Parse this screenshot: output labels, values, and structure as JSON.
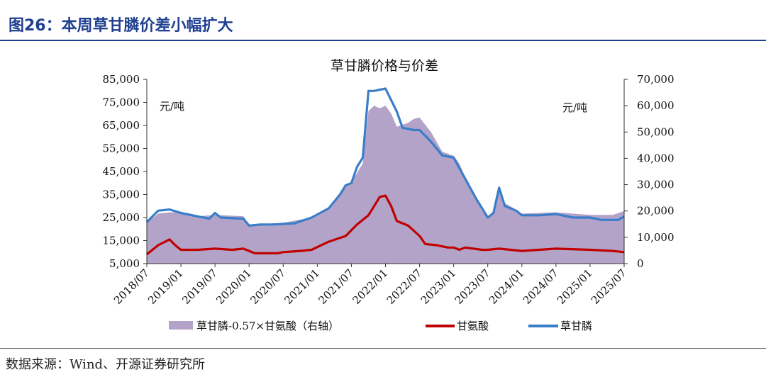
{
  "figure_title": "图26：本周草甘膦价差小幅扩大",
  "source": "数据来源：Wind、开源证券研究所",
  "colors": {
    "area": "#b3a3c8",
    "glycine": "#c00000",
    "glyphosate": "#3a7dc9",
    "title": "#1f3f8f"
  },
  "chart_data": {
    "type": "line",
    "title": "草甘膦价格与价差",
    "left_unit": "元/吨",
    "right_unit": "元/吨",
    "x_ticks": [
      "2018/07",
      "2019/01",
      "2019/07",
      "2020/01",
      "2020/07",
      "2021/01",
      "2021/07",
      "2022/01",
      "2022/07",
      "2023/01",
      "2023/07",
      "2024/01",
      "2024/07",
      "2025/01",
      "2025/07"
    ],
    "y_left": {
      "min": 5000,
      "max": 85000,
      "ticks": [
        "85,000",
        "75,000",
        "65,000",
        "55,000",
        "45,000",
        "35,000",
        "25,000",
        "15,000",
        "5,000"
      ]
    },
    "y_right": {
      "min": 0,
      "max": 70000,
      "ticks": [
        "70,000",
        "60,000",
        "50,000",
        "40,000",
        "30,000",
        "20,000",
        "10,000",
        "0"
      ]
    },
    "legend": [
      "草甘膦-0.57×甘氨酸（右轴）",
      "甘氨酸",
      "草甘膦"
    ],
    "series": [
      {
        "name": "草甘膦",
        "axis": "left",
        "points": [
          [
            "2018/07",
            23000
          ],
          [
            "2018/09",
            28000
          ],
          [
            "2018/11",
            28500
          ],
          [
            "2019/01",
            27000
          ],
          [
            "2019/04",
            25500
          ],
          [
            "2019/06",
            24500
          ],
          [
            "2019/07",
            27000
          ],
          [
            "2019/08",
            25000
          ],
          [
            "2019/12",
            24500
          ],
          [
            "2020/01",
            21500
          ],
          [
            "2020/03",
            22000
          ],
          [
            "2020/05",
            22000
          ],
          [
            "2020/09",
            22500
          ],
          [
            "2020/12",
            25000
          ],
          [
            "2021/03",
            29000
          ],
          [
            "2021/05",
            35000
          ],
          [
            "2021/06",
            39000
          ],
          [
            "2021/07",
            40000
          ],
          [
            "2021/08",
            47000
          ],
          [
            "2021/09",
            51000
          ],
          [
            "2021/10",
            80000
          ],
          [
            "2021/11",
            80000
          ],
          [
            "2021/12",
            80500
          ],
          [
            "2022/01",
            81000
          ],
          [
            "2022/02",
            76000
          ],
          [
            "2022/03",
            71000
          ],
          [
            "2022/04",
            64000
          ],
          [
            "2022/06",
            63000
          ],
          [
            "2022/07",
            63000
          ],
          [
            "2022/09",
            58000
          ],
          [
            "2022/11",
            52000
          ],
          [
            "2023/01",
            51000
          ],
          [
            "2023/03",
            42000
          ],
          [
            "2023/05",
            33000
          ],
          [
            "2023/07",
            25000
          ],
          [
            "2023/08",
            27000
          ],
          [
            "2023/09",
            38000
          ],
          [
            "2023/10",
            30000
          ],
          [
            "2023/12",
            28000
          ],
          [
            "2024/01",
            26000
          ],
          [
            "2024/04",
            26000
          ],
          [
            "2024/07",
            26500
          ],
          [
            "2024/10",
            25000
          ],
          [
            "2025/01",
            25000
          ],
          [
            "2025/03",
            24000
          ],
          [
            "2025/06",
            24000
          ],
          [
            "2025/07",
            25500
          ]
        ]
      },
      {
        "name": "甘氨酸",
        "axis": "left",
        "points": [
          [
            "2018/07",
            9000
          ],
          [
            "2018/09",
            13000
          ],
          [
            "2018/11",
            15500
          ],
          [
            "2018/12",
            13000
          ],
          [
            "2019/01",
            11000
          ],
          [
            "2019/04",
            11000
          ],
          [
            "2019/07",
            11500
          ],
          [
            "2019/10",
            11000
          ],
          [
            "2019/12",
            11500
          ],
          [
            "2020/01",
            10500
          ],
          [
            "2020/02",
            9500
          ],
          [
            "2020/06",
            9500
          ],
          [
            "2020/07",
            10000
          ],
          [
            "2020/10",
            10500
          ],
          [
            "2020/12",
            11000
          ],
          [
            "2021/03",
            14500
          ],
          [
            "2021/06",
            17000
          ],
          [
            "2021/08",
            22000
          ],
          [
            "2021/10",
            26000
          ],
          [
            "2021/12",
            34000
          ],
          [
            "2022/01",
            34500
          ],
          [
            "2022/02",
            30000
          ],
          [
            "2022/03",
            23500
          ],
          [
            "2022/05",
            21500
          ],
          [
            "2022/07",
            17000
          ],
          [
            "2022/08",
            13500
          ],
          [
            "2022/10",
            13000
          ],
          [
            "2022/12",
            12000
          ],
          [
            "2023/01",
            12000
          ],
          [
            "2023/02",
            11000
          ],
          [
            "2023/03",
            12000
          ],
          [
            "2023/06",
            11000
          ],
          [
            "2023/07",
            11000
          ],
          [
            "2023/09",
            11500
          ],
          [
            "2024/01",
            10500
          ],
          [
            "2024/07",
            11500
          ],
          [
            "2025/01",
            11000
          ],
          [
            "2025/05",
            10500
          ],
          [
            "2025/07",
            10000
          ]
        ]
      },
      {
        "name": "草甘膦-0.57×甘氨酸（右轴）",
        "axis": "right",
        "type": "area",
        "points": [
          [
            "2018/07",
            15500
          ],
          [
            "2018/09",
            19000
          ],
          [
            "2018/11",
            19500
          ],
          [
            "2019/01",
            19500
          ],
          [
            "2019/04",
            18000
          ],
          [
            "2019/07",
            18500
          ],
          [
            "2019/12",
            18000
          ],
          [
            "2020/01",
            14500
          ],
          [
            "2020/03",
            15000
          ],
          [
            "2020/07",
            15500
          ],
          [
            "2020/12",
            17500
          ],
          [
            "2021/03",
            21000
          ],
          [
            "2021/06",
            29500
          ],
          [
            "2021/07",
            31000
          ],
          [
            "2021/09",
            38000
          ],
          [
            "2021/10",
            58000
          ],
          [
            "2021/11",
            60000
          ],
          [
            "2021/12",
            59000
          ],
          [
            "2022/01",
            60000
          ],
          [
            "2022/02",
            57000
          ],
          [
            "2022/03",
            52000
          ],
          [
            "2022/05",
            53500
          ],
          [
            "2022/06",
            55000
          ],
          [
            "2022/07",
            55500
          ],
          [
            "2022/09",
            50000
          ],
          [
            "2022/11",
            42500
          ],
          [
            "2023/01",
            41000
          ],
          [
            "2023/02",
            38000
          ],
          [
            "2023/04",
            28000
          ],
          [
            "2023/06",
            20000
          ],
          [
            "2023/07",
            17500
          ],
          [
            "2023/08",
            19000
          ],
          [
            "2023/09",
            27500
          ],
          [
            "2023/10",
            23000
          ],
          [
            "2023/12",
            20500
          ],
          [
            "2024/01",
            19000
          ],
          [
            "2024/07",
            19500
          ],
          [
            "2025/01",
            18500
          ],
          [
            "2025/05",
            18500
          ],
          [
            "2025/07",
            20000
          ]
        ]
      }
    ]
  }
}
